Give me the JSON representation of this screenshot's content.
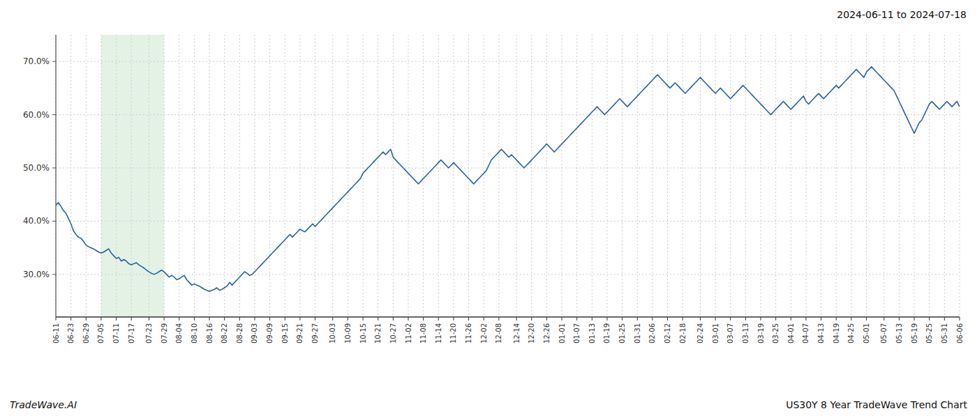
{
  "chart_data": {
    "type": "line",
    "title": "2024-06-11 to 2024-07-18",
    "annotations": [
      "TradeWave.AI",
      "US30Y 8 Year TradeWave Trend Chart"
    ],
    "color": "#2563a8",
    "grid": true,
    "ylim": [
      22,
      75
    ],
    "yticks": [
      {
        "value": 30.0,
        "label": "30.0%"
      },
      {
        "value": 40.0,
        "label": "40.0%"
      },
      {
        "value": 50.0,
        "label": "50.0%"
      },
      {
        "value": 60.0,
        "label": "60.0%"
      },
      {
        "value": 70.0,
        "label": "70.0%"
      }
    ],
    "shade": {
      "from": "07-05",
      "to": "07-29",
      "color": "#c8e6c9"
    },
    "categories": [
      "06-11",
      null,
      null,
      null,
      null,
      null,
      "06-23",
      null,
      null,
      null,
      null,
      null,
      "06-29",
      null,
      null,
      null,
      null,
      null,
      "07-05",
      null,
      null,
      null,
      null,
      null,
      "07-11",
      null,
      null,
      null,
      null,
      null,
      "07-17",
      null,
      null,
      null,
      null,
      null,
      null,
      "07-23",
      null,
      null,
      null,
      null,
      null,
      "07-29",
      null,
      null,
      null,
      null,
      null,
      "08-04",
      null,
      null,
      null,
      null,
      null,
      "08-10",
      null,
      null,
      null,
      null,
      null,
      "08-16",
      null,
      null,
      null,
      null,
      null,
      "08-22",
      null,
      null,
      null,
      null,
      null,
      "08-28",
      null,
      null,
      null,
      null,
      null,
      "09-03",
      null,
      null,
      null,
      null,
      null,
      "09-09",
      null,
      null,
      null,
      null,
      null,
      "09-15",
      null,
      null,
      null,
      null,
      null,
      "09-21",
      null,
      null,
      null,
      null,
      null,
      "09-27",
      null,
      null,
      null,
      null,
      null,
      null,
      "10-03",
      null,
      null,
      null,
      null,
      null,
      "10-09",
      null,
      null,
      null,
      null,
      null,
      "10-15",
      null,
      null,
      null,
      null,
      null,
      "10-21",
      null,
      null,
      null,
      null,
      null,
      "10-27",
      null,
      null,
      null,
      null,
      null,
      "11-02",
      null,
      null,
      null,
      null,
      null,
      "11-08",
      null,
      null,
      null,
      null,
      null,
      "11-14",
      null,
      null,
      null,
      null,
      null,
      "11-20",
      null,
      null,
      null,
      null,
      null,
      "11-26",
      null,
      null,
      null,
      null,
      null,
      "12-02",
      null,
      null,
      null,
      null,
      null,
      "12-08",
      null,
      null,
      null,
      null,
      null,
      null,
      "12-14",
      null,
      null,
      null,
      null,
      null,
      "12-20",
      null,
      null,
      null,
      null,
      null,
      "12-26",
      null,
      null,
      null,
      null,
      null,
      "01-01",
      null,
      null,
      null,
      null,
      null,
      "01-07",
      null,
      null,
      null,
      null,
      null,
      "01-13",
      null,
      null,
      null,
      null,
      null,
      "01-19",
      null,
      null,
      null,
      null,
      null,
      "01-25",
      null,
      null,
      null,
      null,
      null,
      "01-31",
      null,
      null,
      null,
      null,
      null,
      "02-06",
      null,
      null,
      null,
      null,
      null,
      "02-12",
      null,
      null,
      null,
      null,
      null,
      "02-18",
      null,
      null,
      null,
      null,
      null,
      null,
      "02-24",
      null,
      null,
      null,
      null,
      null,
      "03-01",
      null,
      null,
      null,
      null,
      null,
      "03-07",
      null,
      null,
      null,
      null,
      null,
      "03-13",
      null,
      null,
      null,
      null,
      null,
      "03-19",
      null,
      null,
      null,
      null,
      null,
      "03-25",
      null,
      null,
      null,
      null,
      null,
      "04-01",
      null,
      null,
      null,
      null,
      null,
      "04-07",
      null,
      null,
      null,
      null,
      null,
      "04-13",
      null,
      null,
      null,
      null,
      null,
      "04-19",
      null,
      null,
      null,
      null,
      null,
      "04-25",
      null,
      null,
      null,
      null,
      null,
      "05-01",
      null,
      null,
      null,
      null,
      null,
      null,
      "05-07",
      null,
      null,
      null,
      null,
      null,
      "05-13",
      null,
      null,
      null,
      null,
      null,
      "05-19",
      null,
      null,
      null,
      null,
      null,
      "05-25",
      null,
      null,
      null,
      null,
      null,
      "05-31",
      null,
      null,
      null,
      null,
      null,
      "06-06"
    ],
    "values": [
      43.0,
      43.5,
      42.8,
      42.0,
      41.5,
      40.5,
      39.5,
      38.2,
      37.5,
      37.0,
      36.8,
      36.2,
      35.5,
      35.2,
      35.0,
      34.8,
      34.5,
      34.2,
      34.0,
      34.2,
      34.5,
      34.8,
      34.0,
      33.5,
      33.0,
      33.2,
      32.5,
      32.8,
      32.5,
      32.0,
      31.8,
      32.0,
      32.2,
      31.8,
      31.5,
      31.2,
      30.8,
      30.5,
      30.2,
      30.0,
      30.2,
      30.5,
      30.8,
      30.5,
      30.0,
      29.5,
      29.8,
      29.5,
      29.0,
      29.2,
      29.5,
      29.8,
      29.0,
      28.5,
      28.0,
      28.2,
      28.0,
      27.8,
      27.5,
      27.2,
      27.0,
      26.8,
      27.0,
      27.2,
      27.5,
      27.0,
      27.2,
      27.5,
      27.8,
      28.5,
      28.0,
      28.5,
      29.0,
      29.5,
      30.0,
      30.5,
      30.2,
      29.8,
      30.0,
      30.5,
      31.0,
      31.5,
      32.0,
      32.5,
      33.0,
      33.5,
      34.0,
      34.5,
      35.0,
      35.5,
      36.0,
      36.5,
      37.0,
      37.5,
      37.0,
      37.5,
      38.0,
      38.5,
      38.2,
      38.0,
      38.5,
      39.0,
      39.5,
      39.0,
      39.5,
      40.0,
      40.5,
      41.0,
      41.5,
      42.0,
      42.5,
      43.0,
      43.5,
      44.0,
      44.5,
      45.0,
      45.5,
      46.0,
      46.5,
      47.0,
      47.5,
      48.0,
      49.0,
      49.5,
      50.0,
      50.5,
      51.0,
      51.5,
      52.0,
      52.5,
      53.0,
      52.5,
      53.0,
      53.5,
      52.0,
      51.5,
      51.0,
      50.5,
      50.0,
      49.5,
      49.0,
      48.5,
      48.0,
      47.5,
      47.0,
      47.5,
      48.0,
      48.5,
      49.0,
      49.5,
      50.0,
      50.5,
      51.0,
      51.5,
      51.0,
      50.5,
      50.0,
      50.5,
      51.0,
      50.5,
      50.0,
      49.5,
      49.0,
      48.5,
      48.0,
      47.5,
      47.0,
      47.5,
      48.0,
      48.5,
      49.0,
      49.5,
      50.5,
      51.5,
      52.0,
      52.5,
      53.0,
      53.5,
      53.0,
      52.5,
      52.0,
      52.5,
      52.0,
      51.5,
      51.0,
      50.5,
      50.0,
      50.5,
      51.0,
      51.5,
      52.0,
      52.5,
      53.0,
      53.5,
      54.0,
      54.5,
      54.0,
      53.5,
      53.0,
      53.5,
      54.0,
      54.5,
      55.0,
      55.5,
      56.0,
      56.5,
      57.0,
      57.5,
      58.0,
      58.5,
      59.0,
      59.5,
      60.0,
      60.5,
      61.0,
      61.5,
      61.0,
      60.5,
      60.0,
      60.5,
      61.0,
      61.5,
      62.0,
      62.5,
      63.0,
      62.5,
      62.0,
      61.5,
      62.0,
      62.5,
      63.0,
      63.5,
      64.0,
      64.5,
      65.0,
      65.5,
      66.0,
      66.5,
      67.0,
      67.5,
      67.0,
      66.5,
      66.0,
      65.5,
      65.0,
      65.5,
      66.0,
      65.5,
      65.0,
      64.5,
      64.0,
      64.5,
      65.0,
      65.5,
      66.0,
      66.5,
      67.0,
      66.5,
      66.0,
      65.5,
      65.0,
      64.5,
      64.0,
      64.5,
      65.0,
      64.5,
      64.0,
      63.5,
      63.0,
      63.5,
      64.0,
      64.5,
      65.0,
      65.5,
      65.0,
      64.5,
      64.0,
      63.5,
      63.0,
      62.5,
      62.0,
      61.5,
      61.0,
      60.5,
      60.0,
      60.5,
      61.0,
      61.5,
      62.0,
      62.5,
      62.0,
      61.5,
      61.0,
      61.5,
      62.0,
      62.5,
      63.0,
      63.5,
      62.5,
      62.0,
      62.5,
      63.0,
      63.5,
      64.0,
      63.5,
      63.0,
      63.5,
      64.0,
      64.5,
      65.0,
      65.5,
      65.0,
      65.5,
      66.0,
      66.5,
      67.0,
      67.5,
      68.0,
      68.5,
      68.0,
      67.5,
      67.0,
      68.0,
      68.5,
      69.0,
      68.5,
      68.0,
      67.5,
      67.0,
      66.5,
      66.0,
      65.5,
      65.0,
      64.5,
      63.5,
      62.5,
      61.5,
      60.5,
      59.5,
      58.5,
      57.5,
      56.5,
      57.5,
      58.5,
      59.0,
      60.0,
      61.0,
      62.0,
      62.5,
      62.0,
      61.5,
      61.0,
      61.5,
      62.0,
      62.5,
      62.0,
      61.5,
      62.0,
      62.5,
      61.5
    ]
  }
}
